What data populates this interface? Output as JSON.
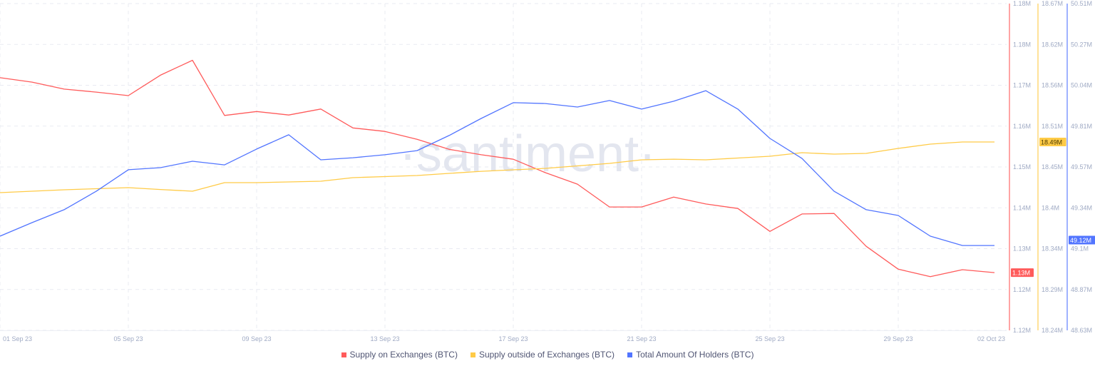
{
  "watermark": "·santiment·",
  "chart_data": {
    "type": "line",
    "title": "",
    "grid": true,
    "legend_position": "bottom-center",
    "x": [
      "01 Sep 23",
      "02 Sep 23",
      "03 Sep 23",
      "04 Sep 23",
      "05 Sep 23",
      "06 Sep 23",
      "07 Sep 23",
      "08 Sep 23",
      "09 Sep 23",
      "10 Sep 23",
      "11 Sep 23",
      "12 Sep 23",
      "13 Sep 23",
      "14 Sep 23",
      "15 Sep 23",
      "16 Sep 23",
      "17 Sep 23",
      "18 Sep 23",
      "19 Sep 23",
      "20 Sep 23",
      "21 Sep 23",
      "22 Sep 23",
      "23 Sep 23",
      "24 Sep 23",
      "25 Sep 23",
      "26 Sep 23",
      "27 Sep 23",
      "28 Sep 23",
      "29 Sep 23",
      "30 Sep 23",
      "01 Oct 23",
      "02 Oct 23"
    ],
    "x_tick_labels": [
      "01 Sep 23",
      "05 Sep 23",
      "09 Sep 23",
      "13 Sep 23",
      "17 Sep 23",
      "21 Sep 23",
      "25 Sep 23",
      "29 Sep 23",
      "02 Oct 23"
    ],
    "x_tick_index": [
      0,
      4,
      8,
      12,
      16,
      20,
      24,
      28,
      31
    ],
    "series": [
      {
        "name": "Supply on Exchanges (BTC)",
        "color": "#ff5b5b",
        "unit": "M",
        "ylim": [
          1.1158,
          1.1815
        ],
        "tick_labels": [
          "1.12M",
          "1.12M",
          "1.13M",
          "1.14M",
          "1.15M",
          "1.16M",
          "1.17M",
          "1.18M",
          "1.18M"
        ],
        "last_value_label": "1.13M",
        "values": [
          1.1666,
          1.1657,
          1.1643,
          1.1637,
          1.163,
          1.1671,
          1.1701,
          1.159,
          1.1598,
          1.1591,
          1.1603,
          1.1565,
          1.1558,
          1.1542,
          1.1522,
          1.1511,
          1.1502,
          1.1475,
          1.1452,
          1.1406,
          1.1406,
          1.1426,
          1.1412,
          1.1403,
          1.1357,
          1.1392,
          1.1393,
          1.1327,
          1.1281,
          1.1266,
          1.128,
          1.1274
        ]
      },
      {
        "name": "Supply outside of Exchanges (BTC)",
        "color": "#ffcb47",
        "unit": "M",
        "ylim": [
          18.237,
          18.668
        ],
        "tick_labels": [
          "18.24M",
          "18.29M",
          "18.34M",
          "18.4M",
          "18.45M",
          "18.51M",
          "18.56M",
          "18.62M",
          "18.67M"
        ],
        "last_value_label": "18.49M",
        "values": [
          18.4186,
          18.4205,
          18.4224,
          18.4238,
          18.4252,
          18.4228,
          18.4205,
          18.4318,
          18.4318,
          18.4327,
          18.4337,
          18.4384,
          18.4398,
          18.4412,
          18.444,
          18.4468,
          18.4487,
          18.4506,
          18.4539,
          18.4572,
          18.4619,
          18.4628,
          18.4619,
          18.4643,
          18.4666,
          18.4713,
          18.4694,
          18.4704,
          18.477,
          18.4826,
          18.4854,
          18.4854
        ]
      },
      {
        "name": "Total Amount Of Holders (BTC)",
        "color": "#5275ff",
        "unit": "M",
        "ylim": [
          48.63,
          50.51
        ],
        "tick_labels": [
          "48.63M",
          "48.87M",
          "49.1M",
          "49.34M",
          "49.57M",
          "49.81M",
          "50.04M",
          "50.27M",
          "50.51M"
        ],
        "last_value_label": "49.12M",
        "values": [
          49.172,
          49.25,
          49.324,
          49.43,
          49.554,
          49.566,
          49.603,
          49.582,
          49.673,
          49.755,
          49.611,
          49.623,
          49.64,
          49.664,
          49.751,
          49.849,
          49.94,
          49.935,
          49.915,
          49.952,
          49.903,
          49.948,
          50.009,
          49.903,
          49.734,
          49.619,
          49.43,
          49.324,
          49.291,
          49.172,
          49.118,
          49.118
        ]
      }
    ]
  }
}
